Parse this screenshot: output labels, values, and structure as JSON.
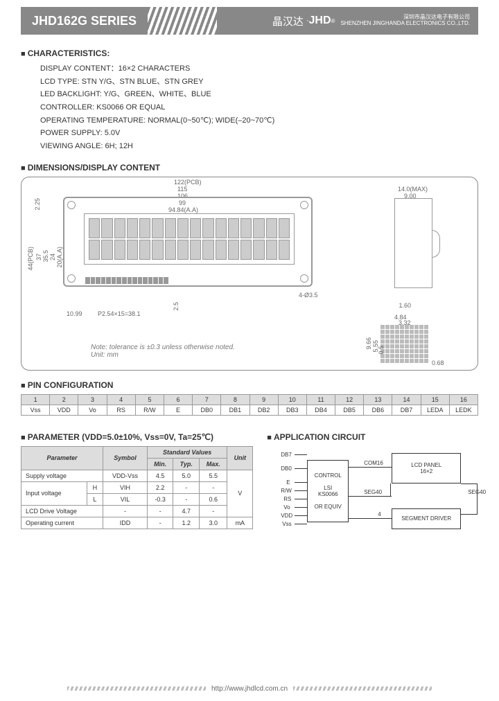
{
  "header": {
    "series": "JHD162G SERIES",
    "brand_cn": "晶汉达",
    "dot": "·",
    "brand_en": "JHD",
    "company_cn": "深圳市晶汉达电子有限公司",
    "company_en": "SHENZHEN JINGHANDA ELECTRONICS CO.,LTD."
  },
  "sections": {
    "characteristics": "CHARACTERISTICS:",
    "dimensions": "DIMENSIONS/DISPLAY CONTENT",
    "pin_config": "PIN CONFIGURATION",
    "parameter": "PARAMETER (VDD=5.0±10%, Vss=0V, Ta=25℃)",
    "app_circuit": "APPLICATION CIRCUIT"
  },
  "characteristics": [
    "DISPLAY CONTENT：16×2 CHARACTERS",
    "LCD TYPE: STN Y/G、STN BLUE、STN GREY",
    "LED BACKLIGHT: Y/G、GREEN、WHITE、BLUE",
    "CONTROLLER: KS0066 OR EQUAL",
    "OPERATING TEMPERATURE: NORMAL(0~50℃); WIDE(–20~70℃)",
    "POWER SUPPLY: 5.0V",
    "VIEWING ANGLE: 6H; 12H"
  ],
  "dims": {
    "w_pcb": "122(PCB)",
    "w_115": "115",
    "w_106": "106",
    "w_99": "99",
    "w_aa": "94.84(A.A)",
    "h_pcb": "44(PCB)",
    "h_37": "37",
    "h_355": "35.5",
    "h_24": "24",
    "h_aa": "20(A.A)",
    "h_225": "2.25",
    "pitch": "P2.54×15=38.1",
    "ledge": "10.99",
    "pad25": "2.5",
    "hole": "4-Ø3.5",
    "side_w": "14.0(MAX)",
    "side_9": "9.00",
    "side_16": "1.60",
    "pix_484": "4.84",
    "pix_332": "3.32",
    "pix_966": "9.66",
    "pix_555": "5.55",
    "pix_05": "0.5",
    "pix_068": "0.68",
    "note1": "Note: tolerance is ±0.3 unless otherwise noted.",
    "note2": "Unit: mm"
  },
  "pins": {
    "nums": [
      "1",
      "2",
      "3",
      "4",
      "5",
      "6",
      "7",
      "8",
      "9",
      "10",
      "11",
      "12",
      "13",
      "14",
      "15",
      "16"
    ],
    "names": [
      "Vss",
      "VDD",
      "Vo",
      "RS",
      "R/W",
      "E",
      "DB0",
      "DB1",
      "DB2",
      "DB3",
      "DB4",
      "DB5",
      "DB6",
      "DB7",
      "LEDA",
      "LEDK"
    ]
  },
  "param_table": {
    "headers": {
      "p": "Parameter",
      "s": "Symbol",
      "std": "Standard Values",
      "min": "Min.",
      "typ": "Typ.",
      "max": "Max.",
      "u": "Unit"
    },
    "rows": [
      {
        "p": "Supply voltage",
        "s": "VDD-Vss",
        "min": "4.5",
        "typ": "5.0",
        "max": "5.5",
        "u": "V"
      },
      {
        "p": "Input voltage",
        "sub": "H",
        "s": "VIH",
        "min": "2.2",
        "typ": "-",
        "max": "-",
        "u": ""
      },
      {
        "p": "",
        "sub": "L",
        "s": "VIL",
        "min": "-0.3",
        "typ": "-",
        "max": "0.6",
        "u": ""
      },
      {
        "p": "LCD Drive Voltage",
        "s": "-",
        "min": "-",
        "typ": "4.7",
        "max": "-",
        "u": ""
      },
      {
        "p": "Operating current",
        "s": "IDD",
        "min": "-",
        "typ": "1.2",
        "max": "3.0",
        "u": "mA"
      }
    ]
  },
  "app": {
    "sigs": [
      "DB7",
      "DB0",
      "E",
      "R/W",
      "RS",
      "Vo",
      "VDD",
      "Vss"
    ],
    "ctrl_l1": "CONTROL",
    "ctrl_l2": "LSI",
    "ctrl_l3": "KS0066",
    "ctrl_l4": "OR EQUIV",
    "lcd_l1": "LCD PANEL",
    "lcd_l2": "16×2",
    "seg": "SEGMENT DRIVER",
    "com16": "COM16",
    "seg40a": "SEG40",
    "seg40b": "SEG40",
    "bus4": "4"
  },
  "footer": {
    "url": "http://www.jhdlcd.com.cn"
  }
}
